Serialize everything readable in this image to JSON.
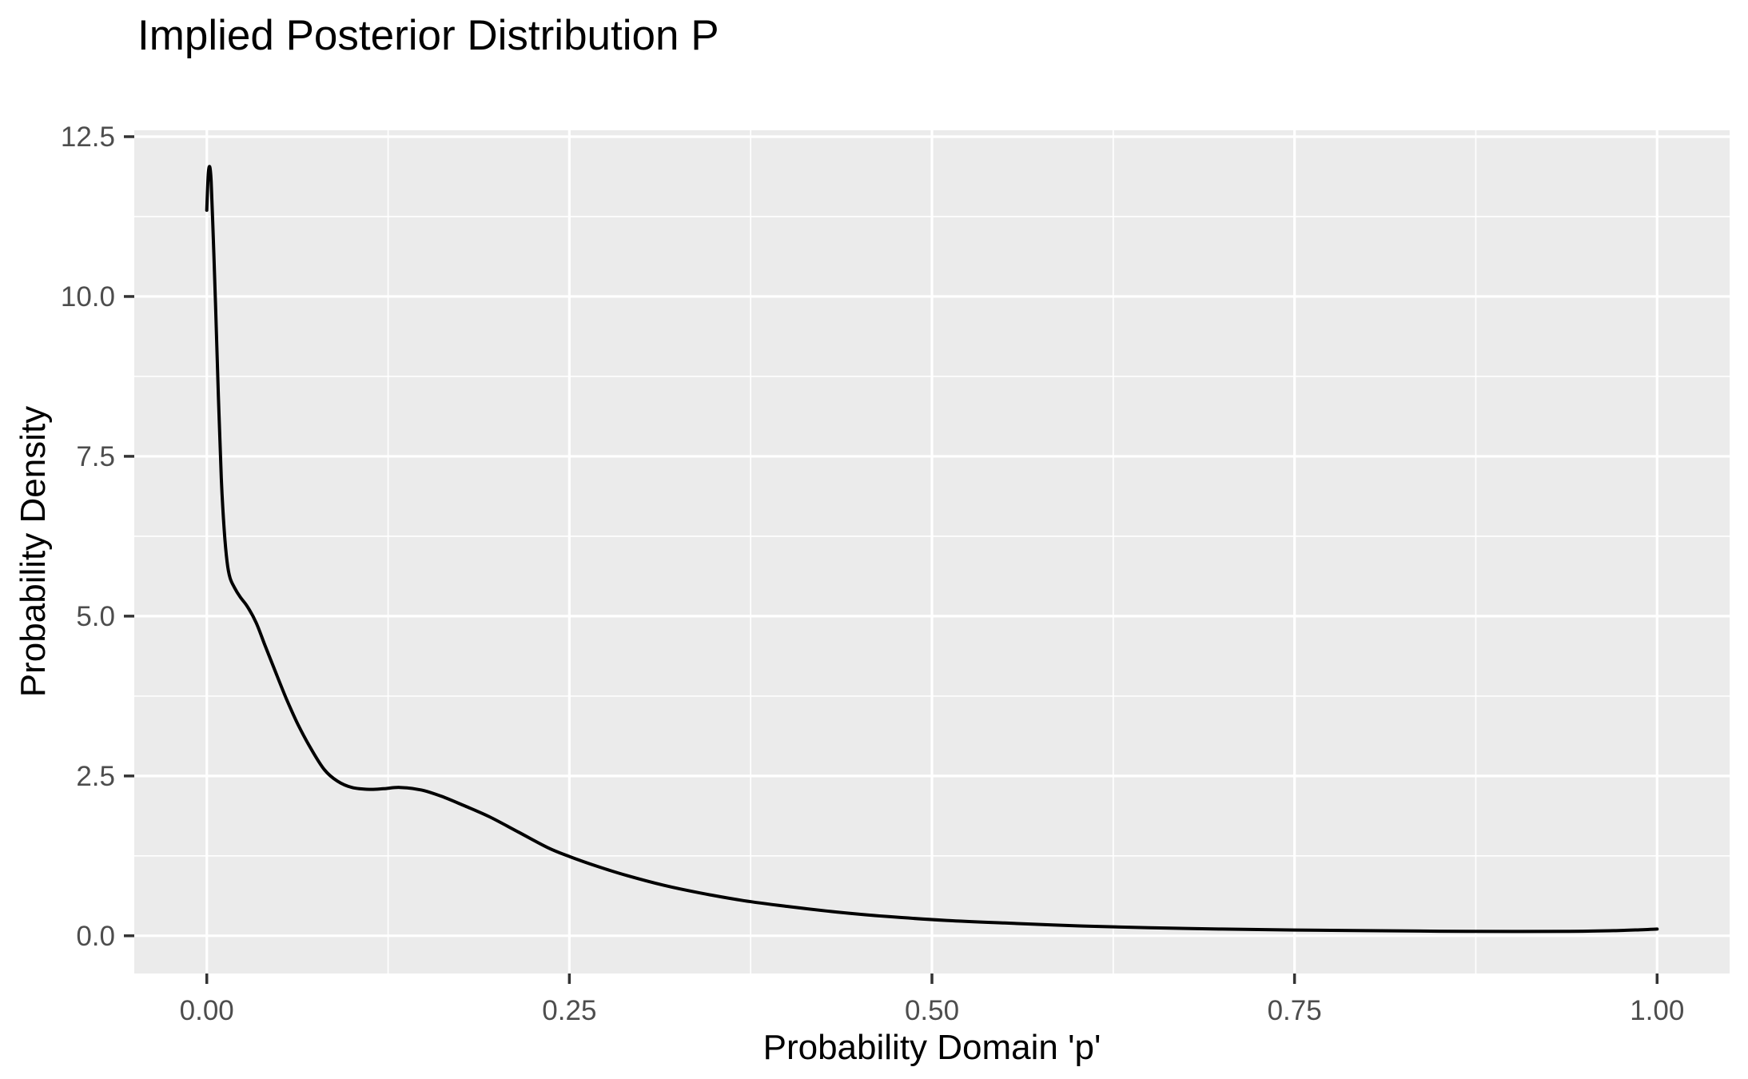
{
  "chart_data": {
    "type": "line",
    "title": "Implied Posterior Distribution P",
    "xlabel": "Probability Domain 'p'",
    "ylabel": "Probability Density",
    "grid": true,
    "legend_position": "none",
    "xlim": [
      -0.05,
      1.05
    ],
    "ylim": [
      -0.59,
      12.6
    ],
    "x_major_ticks": [
      0,
      0.25,
      0.5,
      0.75,
      1.0
    ],
    "x_tick_labels": [
      "0.00",
      "0.25",
      "0.50",
      "0.75",
      "1.00"
    ],
    "x_minor_ticks": [
      0.125,
      0.375,
      0.625,
      0.875
    ],
    "y_major_ticks": [
      0,
      2.5,
      5,
      7.5,
      10,
      12.5
    ],
    "y_tick_labels": [
      "0.0",
      "2.5",
      "5.0",
      "7.5",
      "10.0",
      "12.5"
    ],
    "y_minor_ticks": [
      1.25,
      3.75,
      6.25,
      8.75,
      11.25
    ],
    "series": [
      {
        "name": "posterior-density",
        "x": [
          0.0,
          0.001,
          0.002,
          0.003,
          0.0045,
          0.006,
          0.008,
          0.01,
          0.012,
          0.014,
          0.016,
          0.019,
          0.023,
          0.028,
          0.034,
          0.04,
          0.047,
          0.055,
          0.063,
          0.072,
          0.081,
          0.09,
          0.1,
          0.112,
          0.122,
          0.133,
          0.148,
          0.162,
          0.178,
          0.195,
          0.215,
          0.235,
          0.25,
          0.27,
          0.29,
          0.315,
          0.34,
          0.37,
          0.4,
          0.435,
          0.47,
          0.51,
          0.55,
          0.6,
          0.65,
          0.7,
          0.75,
          0.8,
          0.85,
          0.9,
          0.94,
          0.97,
          0.99,
          1.0
        ],
        "y": [
          11.35,
          11.9,
          12.03,
          11.8,
          10.9,
          9.9,
          8.45,
          7.15,
          6.35,
          5.85,
          5.6,
          5.45,
          5.3,
          5.15,
          4.9,
          4.55,
          4.15,
          3.7,
          3.3,
          2.92,
          2.6,
          2.42,
          2.32,
          2.29,
          2.3,
          2.32,
          2.28,
          2.18,
          2.03,
          1.86,
          1.62,
          1.38,
          1.24,
          1.08,
          0.94,
          0.79,
          0.67,
          0.55,
          0.46,
          0.37,
          0.3,
          0.24,
          0.2,
          0.155,
          0.125,
          0.105,
          0.09,
          0.08,
          0.072,
          0.068,
          0.07,
          0.08,
          0.095,
          0.105
        ]
      }
    ],
    "colors": {
      "panel_background": "#EBEBEB",
      "gridline": "#FFFFFF",
      "line": "#000000",
      "tick_label": "#4D4D4D",
      "tick_mark": "#333333",
      "text": "#000000",
      "page_background": "#FFFFFF"
    }
  }
}
